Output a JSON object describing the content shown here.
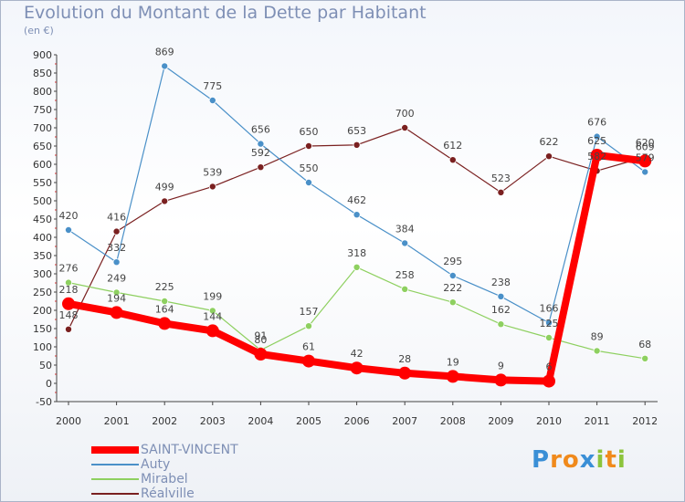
{
  "title": "Evolution du Montant de la Dette par Habitant",
  "subtitle": "(en €)",
  "logo": {
    "text": "Proxiti",
    "letters": [
      "P",
      "r",
      "o",
      "x",
      "i",
      "t",
      "i"
    ],
    "colors": [
      "#3a8fd6",
      "#f08a1c",
      "#f08a1c",
      "#3a8fd6",
      "#8cc43c",
      "#f08a1c",
      "#8cc43c"
    ]
  },
  "chart_data": {
    "type": "line",
    "title": "Evolution du Montant de la Dette par Habitant",
    "ylabel": "(en €)",
    "xlabel": "",
    "ylim": [
      -50,
      900
    ],
    "yticks": [
      -50,
      0,
      50,
      100,
      150,
      200,
      250,
      300,
      350,
      400,
      450,
      500,
      550,
      600,
      650,
      700,
      750,
      800,
      850,
      900
    ],
    "categories": [
      "2000",
      "2001",
      "2002",
      "2003",
      "2004",
      "2005",
      "2006",
      "2007",
      "2008",
      "2009",
      "2010",
      "2011",
      "2012"
    ],
    "grid": false,
    "legend": "bottom-left",
    "series": [
      {
        "name": "Réalville",
        "color": "#7a2020",
        "values": [
          148,
          416,
          499,
          539,
          592,
          650,
          653,
          700,
          612,
          523,
          622,
          582,
          620
        ],
        "bold": false
      },
      {
        "name": "Auty",
        "color": "#4a90c8",
        "values": [
          420,
          332,
          869,
          775,
          656,
          550,
          462,
          384,
          295,
          238,
          166,
          676,
          579
        ],
        "bold": false
      },
      {
        "name": "Mirabel",
        "color": "#8ed060",
        "values": [
          276,
          249,
          225,
          199,
          91,
          157,
          318,
          258,
          222,
          162,
          125,
          89,
          68
        ],
        "bold": false
      },
      {
        "name": "SAINT-VINCENT",
        "color": "#ff0000",
        "values": [
          218,
          194,
          164,
          144,
          80,
          61,
          42,
          28,
          19,
          9,
          6,
          625,
          609
        ],
        "bold": true
      }
    ],
    "legend_order": [
      "SAINT-VINCENT",
      "Auty",
      "Mirabel",
      "Réalville"
    ]
  }
}
